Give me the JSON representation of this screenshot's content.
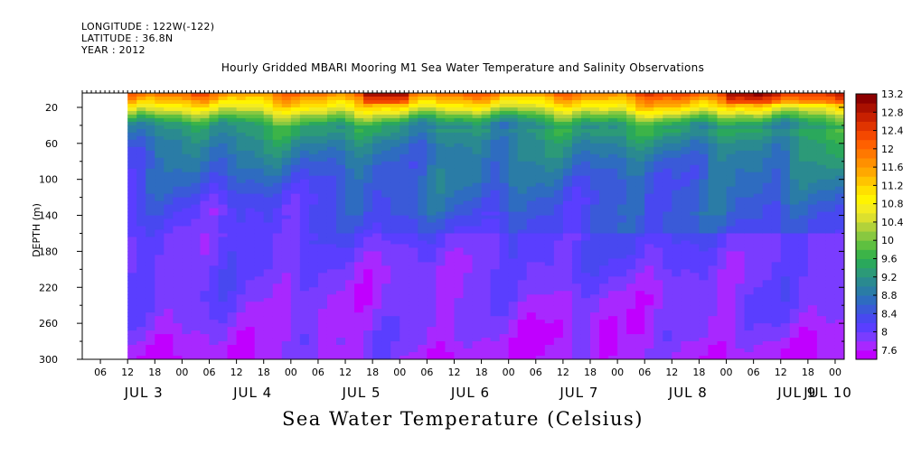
{
  "header": {
    "longitude": "LONGITUDE : 122W(-122)",
    "latitude": "LATITUDE : 36.8N",
    "year": "YEAR : 2012"
  },
  "chart_data": {
    "type": "heatmap",
    "title": "Hourly Gridded MBARI Mooring M1 Sea Water Temperature and Salinity Observations",
    "xlabel": "Sea Water Temperature (Celsius)",
    "ylabel": "DEPTH (m)",
    "x_axis": {
      "range": [
        "2012-07-03 02:00",
        "2012-07-10 02:00"
      ],
      "data_start": "2012-07-03 12:00",
      "hour_ticks": [
        "06",
        "12",
        "18",
        "00",
        "06",
        "12",
        "18",
        "00",
        "06",
        "12",
        "18",
        "00",
        "06",
        "12",
        "18",
        "00",
        "06",
        "12",
        "18",
        "00",
        "06",
        "12",
        "18",
        "00",
        "06",
        "12",
        "18",
        "00",
        "06",
        "12",
        "18",
        "00",
        "00"
      ],
      "day_labels": [
        "JUL 3",
        "JUL 4",
        "JUL 5",
        "JUL 6",
        "JUL 7",
        "JUL 8",
        "JUL 9",
        "JUL 10"
      ]
    },
    "y_axis": {
      "range": [
        300,
        4
      ],
      "tick_values": [
        20,
        60,
        100,
        140,
        180,
        220,
        260,
        300
      ],
      "tick_labels": [
        "20",
        "60",
        "100",
        "140",
        "180",
        "220",
        "260",
        "300"
      ]
    },
    "colorbar": {
      "levels": [
        7.6,
        7.8,
        8.0,
        8.2,
        8.4,
        8.6,
        8.8,
        9.0,
        9.2,
        9.4,
        9.6,
        9.8,
        10.0,
        10.2,
        10.4,
        10.6,
        10.8,
        11.0,
        11.2,
        11.4,
        11.6,
        11.8,
        12.0,
        12.2,
        12.4,
        12.6,
        12.8,
        13.0,
        13.2,
        13.4
      ],
      "tick_labels": [
        "7.6",
        "8",
        "8.4",
        "8.8",
        "9.2",
        "9.6",
        "10",
        "10.4",
        "10.8",
        "11.2",
        "11.6",
        "12",
        "12.4",
        "12.8",
        "13.2"
      ],
      "colors": [
        "#c000ff",
        "#a828ff",
        "#7a3cff",
        "#5a3eff",
        "#4848f0",
        "#3a5ad8",
        "#2e6cc0",
        "#2a7ca6",
        "#2a8a90",
        "#2c9a78",
        "#2aa85c",
        "#3cb448",
        "#5ec040",
        "#88c840",
        "#b2d23a",
        "#dce02e",
        "#f4ec20",
        "#fff400",
        "#ffe000",
        "#ffc400",
        "#ffa800",
        "#ff9000",
        "#ff7800",
        "#ff6000",
        "#f44800",
        "#e03400",
        "#c82000",
        "#aa1000",
        "#8c0000"
      ]
    },
    "profile_depths": [
      4,
      10,
      20,
      30,
      40,
      60,
      80,
      100,
      120,
      140,
      160,
      180,
      200,
      220,
      240,
      260,
      280,
      290,
      300
    ],
    "mean_profile": [
      12.3,
      11.8,
      11.1,
      10.2,
      9.5,
      9.05,
      8.8,
      8.65,
      8.5,
      8.4,
      8.3,
      8.22,
      8.15,
      8.1,
      8.05,
      8.0,
      7.95,
      7.9,
      7.88
    ]
  }
}
